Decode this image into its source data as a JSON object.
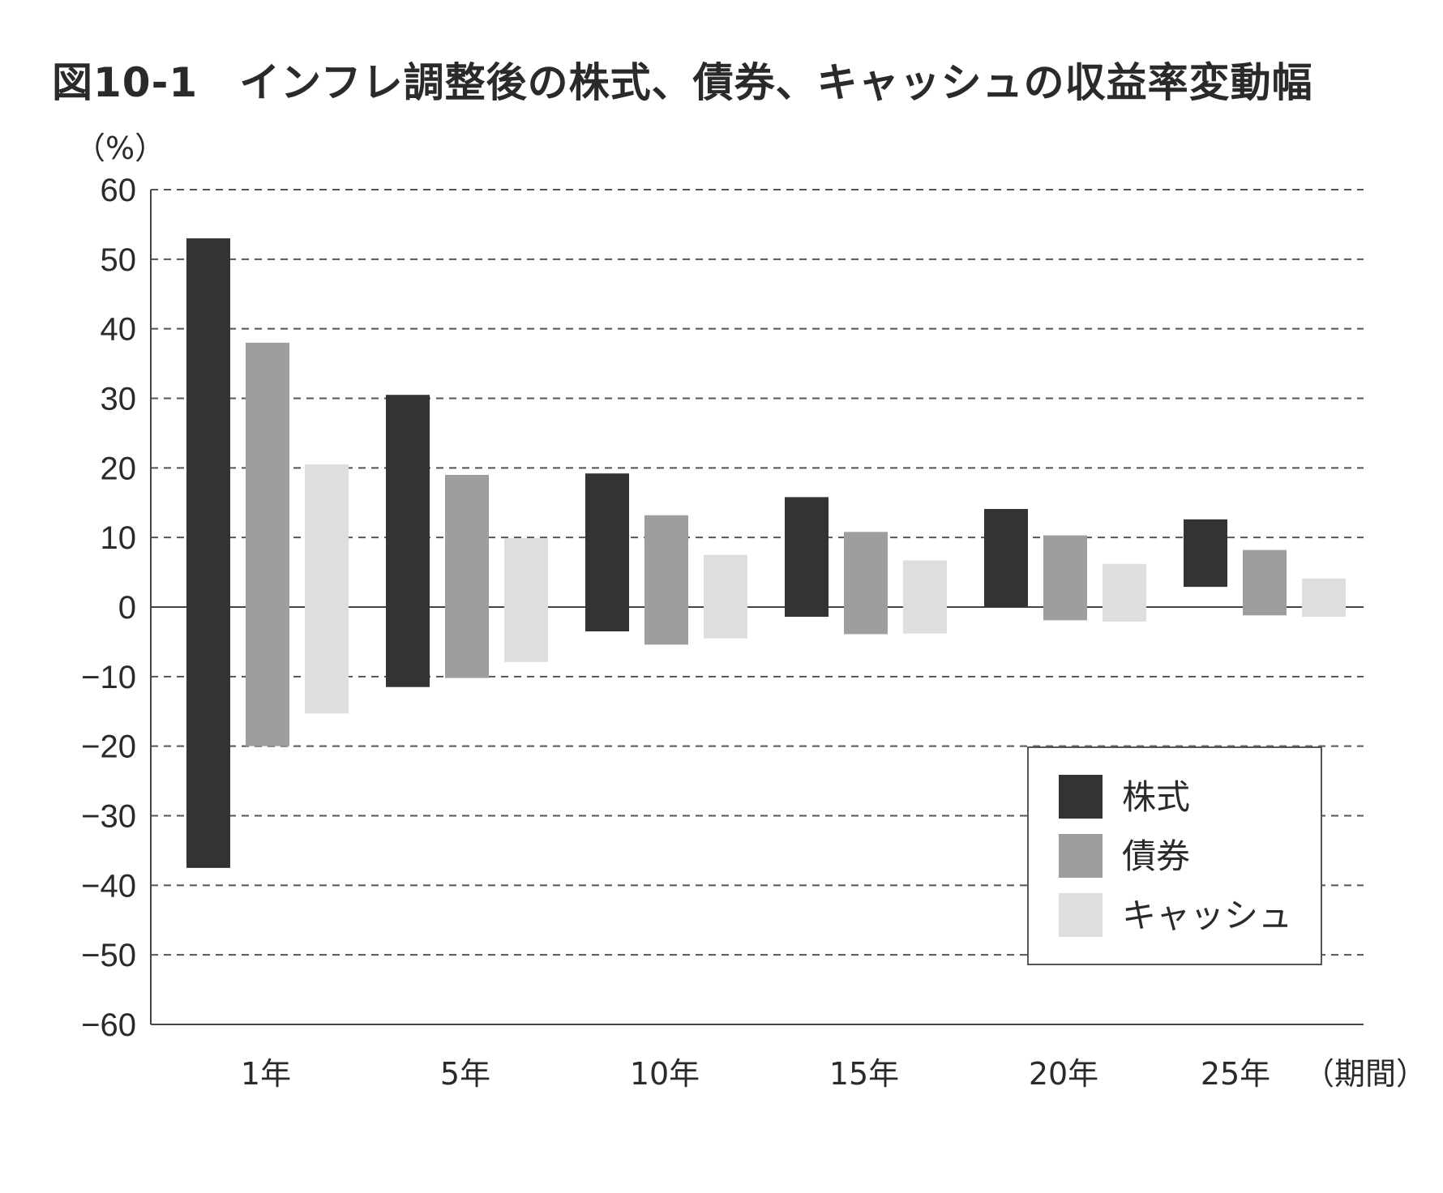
{
  "title": "図10-1　インフレ調整後の株式、債券、キャッシュの収益率変動幅",
  "chart_data": {
    "type": "bar",
    "subtype": "floating-range",
    "title": "図10-1　インフレ調整後の株式、債券、キャッシュの収益率変動幅",
    "ylabel": "（%）",
    "xlabel": "（期間）",
    "ylim": [
      -60,
      60
    ],
    "yticks": [
      60,
      50,
      40,
      30,
      20,
      10,
      0,
      -10,
      -20,
      -30,
      -40,
      -50,
      -60
    ],
    "grid": true,
    "legend_position": "bottom-right",
    "categories": [
      "1年",
      "5年",
      "10年",
      "15年",
      "20年",
      "25年"
    ],
    "series": [
      {
        "name": "株式",
        "color": "#333333",
        "ranges": [
          [
            -37.5,
            53
          ],
          [
            -11.5,
            30.5
          ],
          [
            -3.5,
            19.2
          ],
          [
            -1.4,
            15.8
          ],
          [
            0,
            14.1
          ],
          [
            2.9,
            12.6
          ]
        ]
      },
      {
        "name": "債券",
        "color": "#9e9e9e",
        "ranges": [
          [
            -20,
            38
          ],
          [
            -10.2,
            19
          ],
          [
            -5.4,
            13.2
          ],
          [
            -3.9,
            10.8
          ],
          [
            -1.9,
            10.3
          ],
          [
            -1.2,
            8.2
          ]
        ]
      },
      {
        "name": "キャッシュ",
        "color": "#dedede",
        "ranges": [
          [
            -15.3,
            20.5
          ],
          [
            -7.9,
            9.9
          ],
          [
            -4.5,
            7.5
          ],
          [
            -3.8,
            6.7
          ],
          [
            -2.1,
            6.2
          ],
          [
            -1.4,
            4.1
          ]
        ]
      }
    ]
  }
}
